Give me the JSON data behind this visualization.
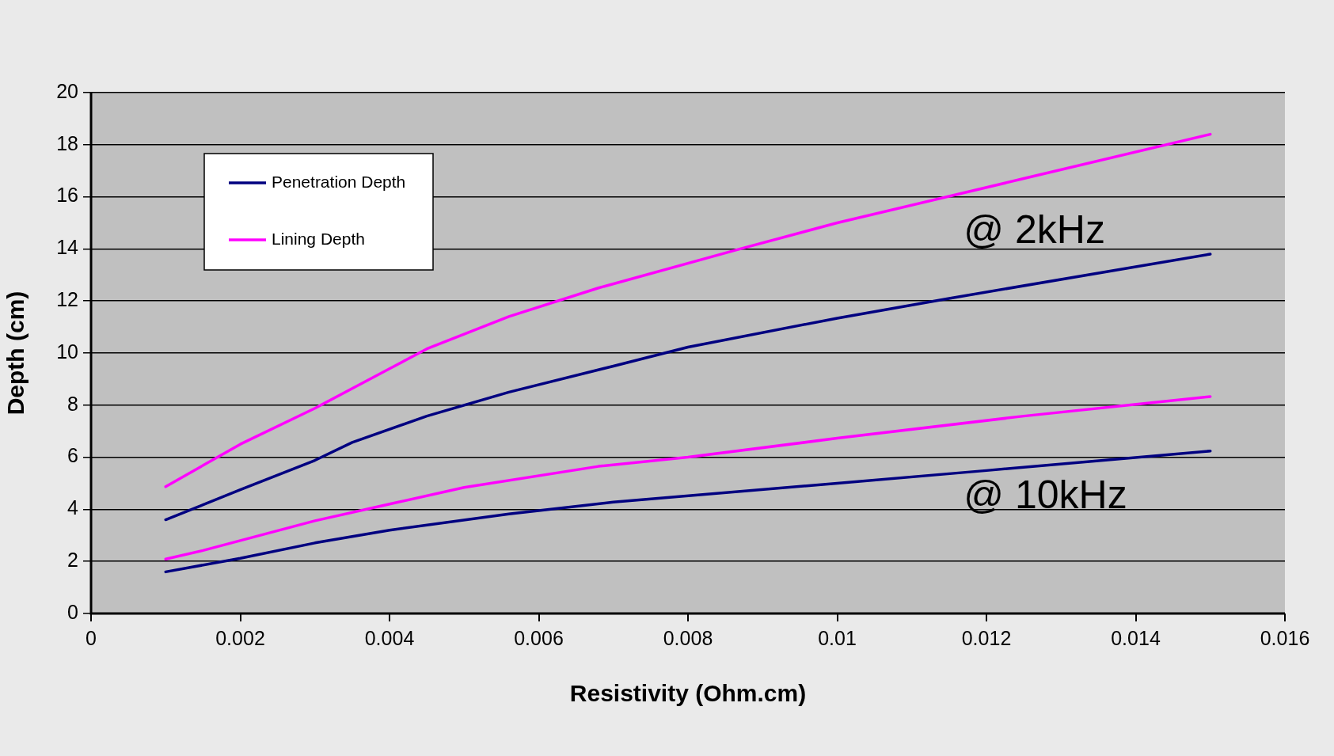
{
  "chart_data": {
    "type": "line",
    "xlabel": "Resistivity (Ohm.cm)",
    "ylabel": "Depth (cm)",
    "xlim": [
      0,
      0.016
    ],
    "xticks": [
      0,
      0.002,
      0.004,
      0.006,
      0.008,
      0.01,
      0.012,
      0.014,
      0.016
    ],
    "ylim": [
      0,
      20
    ],
    "yticks": [
      0,
      2,
      4,
      6,
      8,
      10,
      12,
      14,
      16,
      18,
      20
    ],
    "grid": "y",
    "legend": "top left",
    "marker": "none",
    "line_style": "solid",
    "series": [
      {
        "name": "Penetration Depth",
        "color": "#000080",
        "x": [
          0.001,
          0.002,
          0.003,
          0.0035,
          0.0045,
          0.0056,
          0.007,
          0.008,
          0.01,
          0.0115,
          0.015
        ],
        "values": [
          3.6,
          4.75,
          5.88,
          6.57,
          7.58,
          8.5,
          9.5,
          10.23,
          11.34,
          12.1,
          13.8
        ]
      },
      {
        "name": "Lining Depth",
        "color": "#ff00ff",
        "x": [
          0.001,
          0.002,
          0.003,
          0.004,
          0.0045,
          0.0056,
          0.0068,
          0.0087,
          0.01,
          0.0125,
          0.015
        ],
        "values": [
          4.87,
          6.5,
          7.88,
          9.4,
          10.16,
          11.4,
          12.5,
          14.0,
          15.0,
          16.7,
          18.4
        ]
      },
      {
        "color": "#ff00ff",
        "x": [
          0.001,
          0.0015,
          0.003,
          0.004,
          0.005,
          0.0068,
          0.008,
          0.01,
          0.0125,
          0.015
        ],
        "values": [
          2.09,
          2.42,
          3.56,
          4.2,
          4.84,
          5.65,
          6.0,
          6.73,
          7.58,
          8.33
        ]
      },
      {
        "color": "#000080",
        "x": [
          0.001,
          0.002,
          0.003,
          0.004,
          0.0056,
          0.006,
          0.007,
          0.01,
          0.012,
          0.015
        ],
        "values": [
          1.6,
          2.12,
          2.71,
          3.2,
          3.82,
          3.95,
          4.28,
          5.0,
          5.49,
          6.24
        ]
      }
    ],
    "annotations": [
      "@ 2kHz",
      "@ 10kHz"
    ]
  }
}
